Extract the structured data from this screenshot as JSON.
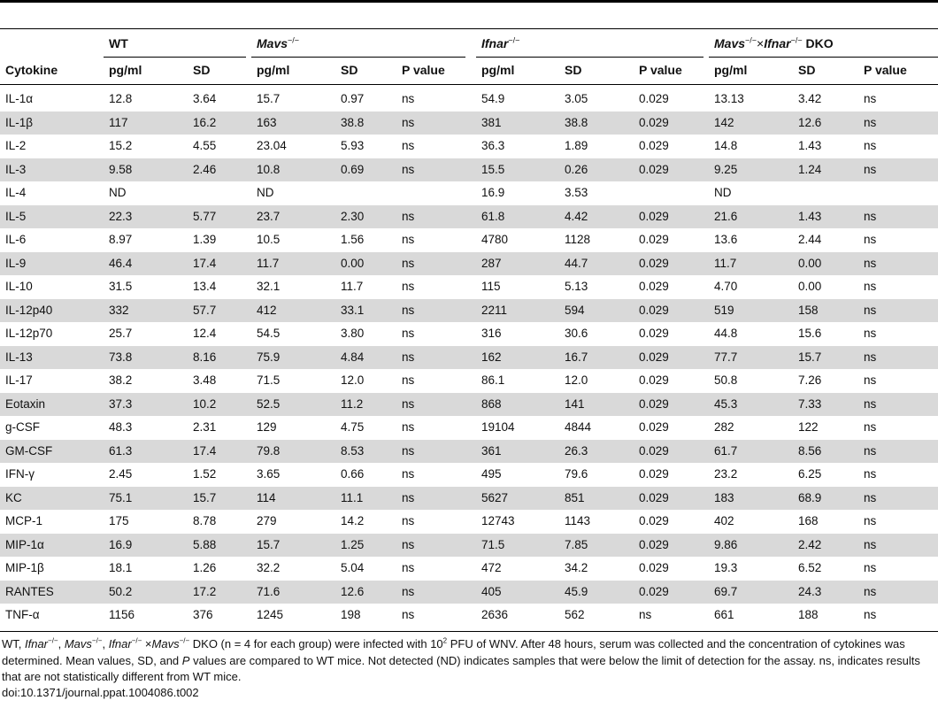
{
  "groups": [
    {
      "name": "WT",
      "sup": ""
    },
    {
      "name": "Mavs",
      "sup": "−/−"
    },
    {
      "name": "Ifnar",
      "sup": "−/−"
    },
    {
      "name_a": "Mavs",
      "sup_a": "−/−",
      "times": "×",
      "name_b": "Ifnar",
      "sup_b": "−/−",
      "suffix": " DKO"
    }
  ],
  "columns": [
    "Cytokine",
    "pg/ml",
    "SD",
    "pg/ml",
    "SD",
    "P value",
    "pg/ml",
    "SD",
    "P value",
    "pg/ml",
    "SD",
    "P value"
  ],
  "rows": [
    [
      "IL-1α",
      "12.8",
      "3.64",
      "15.7",
      "0.97",
      "ns",
      "54.9",
      "3.05",
      "0.029",
      "13.13",
      "3.42",
      "ns"
    ],
    [
      "IL-1β",
      "117",
      "16.2",
      "163",
      "38.8",
      "ns",
      "381",
      "38.8",
      "0.029",
      "142",
      "12.6",
      "ns"
    ],
    [
      "IL-2",
      "15.2",
      "4.55",
      "23.04",
      "5.93",
      "ns",
      "36.3",
      "1.89",
      "0.029",
      "14.8",
      "1.43",
      "ns"
    ],
    [
      "IL-3",
      "9.58",
      "2.46",
      "10.8",
      "0.69",
      "ns",
      "15.5",
      "0.26",
      "0.029",
      "9.25",
      "1.24",
      "ns"
    ],
    [
      "IL-4",
      "ND",
      "",
      "ND",
      "",
      "",
      "16.9",
      "3.53",
      "",
      "ND",
      "",
      ""
    ],
    [
      "IL-5",
      "22.3",
      "5.77",
      "23.7",
      "2.30",
      "ns",
      "61.8",
      "4.42",
      "0.029",
      "21.6",
      "1.43",
      "ns"
    ],
    [
      "IL-6",
      "8.97",
      "1.39",
      "10.5",
      "1.56",
      "ns",
      "4780",
      "1128",
      "0.029",
      "13.6",
      "2.44",
      "ns"
    ],
    [
      "IL-9",
      "46.4",
      "17.4",
      "11.7",
      "0.00",
      "ns",
      "287",
      "44.7",
      "0.029",
      "11.7",
      "0.00",
      "ns"
    ],
    [
      "IL-10",
      "31.5",
      "13.4",
      "32.1",
      "11.7",
      "ns",
      "115",
      "5.13",
      "0.029",
      "4.70",
      "0.00",
      "ns"
    ],
    [
      "IL-12p40",
      "332",
      "57.7",
      "412",
      "33.1",
      "ns",
      "2211",
      "594",
      "0.029",
      "519",
      "158",
      "ns"
    ],
    [
      "IL-12p70",
      "25.7",
      "12.4",
      "54.5",
      "3.80",
      "ns",
      "316",
      "30.6",
      "0.029",
      "44.8",
      "15.6",
      "ns"
    ],
    [
      "IL-13",
      "73.8",
      "8.16",
      "75.9",
      "4.84",
      "ns",
      "162",
      "16.7",
      "0.029",
      "77.7",
      "15.7",
      "ns"
    ],
    [
      "IL-17",
      "38.2",
      "3.48",
      "71.5",
      "12.0",
      "ns",
      "86.1",
      "12.0",
      "0.029",
      "50.8",
      "7.26",
      "ns"
    ],
    [
      "Eotaxin",
      "37.3",
      "10.2",
      "52.5",
      "11.2",
      "ns",
      "868",
      "141",
      "0.029",
      "45.3",
      "7.33",
      "ns"
    ],
    [
      "g-CSF",
      "48.3",
      "2.31",
      "129",
      "4.75",
      "ns",
      "19104",
      "4844",
      "0.029",
      "282",
      "122",
      "ns"
    ],
    [
      "GM-CSF",
      "61.3",
      "17.4",
      "79.8",
      "8.53",
      "ns",
      "361",
      "26.3",
      "0.029",
      "61.7",
      "8.56",
      "ns"
    ],
    [
      "IFN-γ",
      "2.45",
      "1.52",
      "3.65",
      "0.66",
      "ns",
      "495",
      "79.6",
      "0.029",
      "23.2",
      "6.25",
      "ns"
    ],
    [
      "KC",
      "75.1",
      "15.7",
      "114",
      "11.1",
      "ns",
      "5627",
      "851",
      "0.029",
      "183",
      "68.9",
      "ns"
    ],
    [
      "MCP-1",
      "175",
      "8.78",
      "279",
      "14.2",
      "ns",
      "12743",
      "1143",
      "0.029",
      "402",
      "168",
      "ns"
    ],
    [
      "MIP-1α",
      "16.9",
      "5.88",
      "15.7",
      "1.25",
      "ns",
      "71.5",
      "7.85",
      "0.029",
      "9.86",
      "2.42",
      "ns"
    ],
    [
      "MIP-1β",
      "18.1",
      "1.26",
      "32.2",
      "5.04",
      "ns",
      "472",
      "34.2",
      "0.029",
      "19.3",
      "6.52",
      "ns"
    ],
    [
      "RANTES",
      "50.2",
      "17.2",
      "71.6",
      "12.6",
      "ns",
      "405",
      "45.9",
      "0.029",
      "69.7",
      "24.3",
      "ns"
    ],
    [
      "TNF-α",
      "1156",
      "376",
      "1245",
      "198",
      "ns",
      "2636",
      "562",
      "ns",
      "661",
      "188",
      "ns"
    ]
  ],
  "caption": {
    "p1": "WT, ",
    "ifnar1": "Ifnar",
    "sup1": "−/−",
    "p2": ", ",
    "mavs1": "Mavs",
    "sup2": "−/−",
    "p3": ", ",
    "ifnar2": "Ifnar",
    "sup3": "−/−",
    "p4": " ×",
    "mavs2": "Mavs",
    "sup4": "−/−",
    "p5": " DKO (n = 4 for each group) were infected with 10",
    "sup5": "2",
    "p6": " PFU of WNV. After 48 hours, serum was collected and the concentration of cytokines was determined. Mean values, SD, and ",
    "pitalic": "P",
    "p7": " values are compared to WT mice. Not detected (ND) indicates samples that were below the limit of detection for the assay. ns, indicates results that are not statistically different from WT mice."
  },
  "doi": "doi:10.1371/journal.ppat.1004086.t002"
}
